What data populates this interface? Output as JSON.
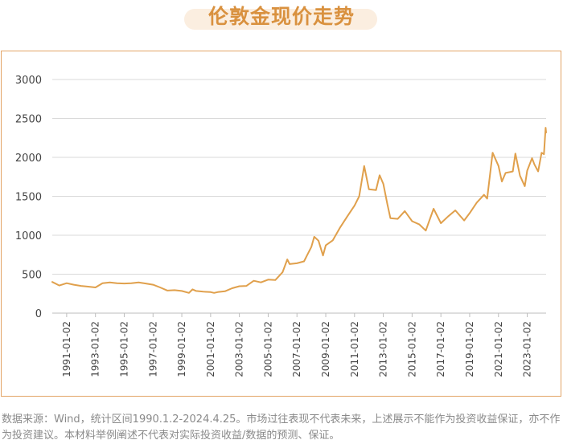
{
  "title": "伦敦金现价走势",
  "footnote": "数据来源：Wind，统计区间1990.1.2-2024.4.25。市场过往表现不代表未来，上述展示不能作为投资收益保证，亦不作为投资建议。本材料举例阐述不代表对实际投资收益/数据的预测、保证。",
  "colors": {
    "line": "#e0a04c",
    "title": "#d9913f",
    "title_bg": "#fbeee0",
    "border": "#e3a466",
    "grid": "#d9d9d9",
    "axis_text": "#444444"
  },
  "chart_data": {
    "type": "line",
    "title": "伦敦金现价走势",
    "xlabel": "",
    "ylabel": "",
    "xlim": [
      "1990-01-02",
      "2024-04-25"
    ],
    "ylim": [
      0,
      3000
    ],
    "yticks": [
      0,
      500,
      1000,
      1500,
      2000,
      2500,
      3000
    ],
    "ytick_labels": [
      "0",
      "500",
      "1000",
      "1500",
      "2000",
      "2500",
      "3000"
    ],
    "xticks": [
      "1991-01-02",
      "1993-01-02",
      "1995-01-02",
      "1997-01-02",
      "1999-01-02",
      "2001-01-02",
      "2003-01-02",
      "2005-01-02",
      "2007-01-02",
      "2009-01-02",
      "2011-01-02",
      "2013-01-02",
      "2015-01-02",
      "2017-01-02",
      "2019-01-02",
      "2021-01-02",
      "2023-01-02"
    ],
    "grid": "horizontal",
    "legend": "none",
    "series": [
      {
        "x": [
          "1990-01-02",
          "1990-07-01",
          "1991-01-02",
          "1991-07-01",
          "1992-01-02",
          "1992-07-01",
          "1993-01-02",
          "1993-07-01",
          "1994-01-02",
          "1994-07-01",
          "1995-01-02",
          "1995-07-01",
          "1996-01-02",
          "1996-07-01",
          "1997-01-02",
          "1997-07-01",
          "1998-01-02",
          "1998-07-01",
          "1999-01-02",
          "1999-07-01",
          "1999-10-01",
          "2000-01-02",
          "2000-07-01",
          "2001-01-02",
          "2001-04-01",
          "2001-07-01",
          "2002-01-02",
          "2002-07-01",
          "2003-01-02",
          "2003-07-01",
          "2004-01-02",
          "2004-07-01",
          "2005-01-02",
          "2005-07-01",
          "2006-01-02",
          "2006-05-01",
          "2006-07-01",
          "2007-01-02",
          "2007-07-01",
          "2008-01-02",
          "2008-03-15",
          "2008-07-01",
          "2008-10-25",
          "2009-01-02",
          "2009-07-01",
          "2010-01-02",
          "2010-07-01",
          "2011-01-02",
          "2011-05-01",
          "2011-09-05",
          "2012-01-02",
          "2012-07-01",
          "2012-10-01",
          "2013-01-02",
          "2013-04-15",
          "2013-07-01",
          "2014-01-02",
          "2014-07-01",
          "2015-01-02",
          "2015-07-01",
          "2015-12-15",
          "2016-07-01",
          "2017-01-02",
          "2017-07-01",
          "2018-01-02",
          "2018-08-15",
          "2019-01-02",
          "2019-07-01",
          "2020-01-02",
          "2020-03-20",
          "2020-08-07",
          "2021-01-02",
          "2021-03-30",
          "2021-07-01",
          "2022-01-02",
          "2022-03-08",
          "2022-07-01",
          "2022-11-01",
          "2023-01-02",
          "2023-05-04",
          "2023-07-01",
          "2023-10-05",
          "2024-01-02",
          "2024-03-01",
          "2024-04-12",
          "2024-04-25"
        ],
        "values": [
          400,
          355,
          385,
          365,
          350,
          340,
          330,
          385,
          395,
          385,
          380,
          385,
          395,
          380,
          365,
          330,
          290,
          295,
          285,
          260,
          305,
          285,
          275,
          270,
          260,
          270,
          280,
          320,
          345,
          350,
          415,
          395,
          430,
          425,
          525,
          690,
          630,
          640,
          665,
          850,
          980,
          930,
          740,
          870,
          935,
          1100,
          1240,
          1380,
          1500,
          1890,
          1590,
          1580,
          1770,
          1660,
          1400,
          1220,
          1210,
          1310,
          1180,
          1140,
          1060,
          1340,
          1155,
          1240,
          1320,
          1190,
          1285,
          1420,
          1520,
          1470,
          2060,
          1890,
          1690,
          1800,
          1820,
          2050,
          1765,
          1630,
          1830,
          1990,
          1910,
          1820,
          2060,
          2040,
          2380,
          2320
        ]
      }
    ]
  }
}
